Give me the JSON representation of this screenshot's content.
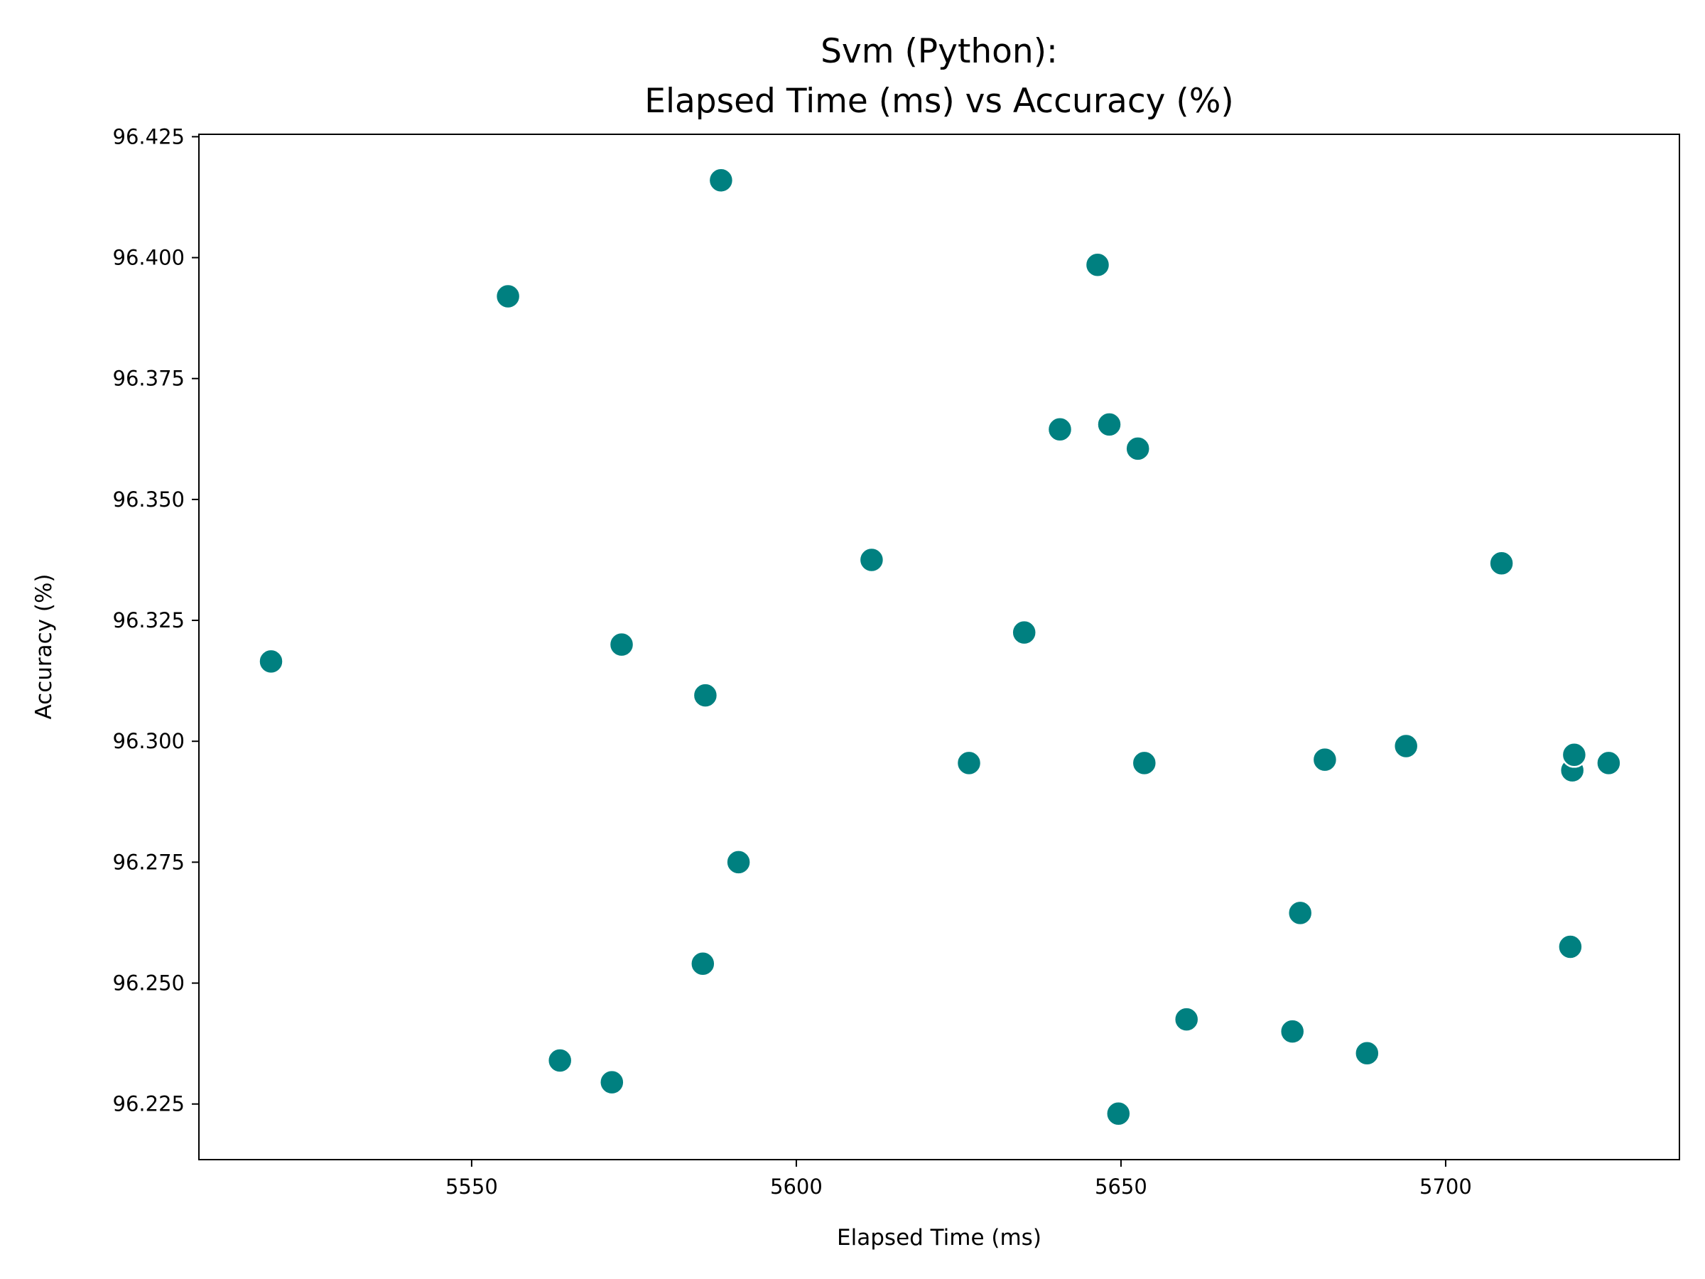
{
  "chart_data": {
    "type": "scatter",
    "title": [
      "Svm (Python):",
      "Elapsed Time (ms) vs Accuracy (%)"
    ],
    "xlabel": "Elapsed Time (ms)",
    "ylabel": "Accuracy (%)",
    "xlim": [
      5508,
      5736
    ],
    "ylim": [
      96.2135,
      96.4255
    ],
    "xticks": [
      5550,
      5600,
      5650,
      5700
    ],
    "xtick_labels": [
      "5550",
      "5600",
      "5650",
      "5700"
    ],
    "yticks": [
      96.225,
      96.25,
      96.275,
      96.3,
      96.325,
      96.35,
      96.375,
      96.4,
      96.425
    ],
    "ytick_labels": [
      "96.225",
      "96.250",
      "96.275",
      "96.300",
      "96.325",
      "96.350",
      "96.375",
      "96.400",
      "96.425"
    ],
    "grid": false,
    "marker_color": "#008080",
    "points": [
      {
        "x": 5519.1,
        "y": 96.3165
      },
      {
        "x": 5555.6,
        "y": 96.392
      },
      {
        "x": 5563.6,
        "y": 96.234
      },
      {
        "x": 5571.6,
        "y": 96.2295
      },
      {
        "x": 5573.1,
        "y": 96.32
      },
      {
        "x": 5585.6,
        "y": 96.254
      },
      {
        "x": 5586.0,
        "y": 96.3095
      },
      {
        "x": 5588.4,
        "y": 96.416
      },
      {
        "x": 5591.1,
        "y": 96.275
      },
      {
        "x": 5611.6,
        "y": 96.3375
      },
      {
        "x": 5626.6,
        "y": 96.2955
      },
      {
        "x": 5635.1,
        "y": 96.3225
      },
      {
        "x": 5640.6,
        "y": 96.3645
      },
      {
        "x": 5646.4,
        "y": 96.3985
      },
      {
        "x": 5648.2,
        "y": 96.3655
      },
      {
        "x": 5649.6,
        "y": 96.223
      },
      {
        "x": 5652.6,
        "y": 96.3605
      },
      {
        "x": 5653.6,
        "y": 96.2955
      },
      {
        "x": 5660.1,
        "y": 96.2425
      },
      {
        "x": 5676.4,
        "y": 96.24
      },
      {
        "x": 5677.6,
        "y": 96.2645
      },
      {
        "x": 5681.4,
        "y": 96.2962
      },
      {
        "x": 5687.9,
        "y": 96.2355
      },
      {
        "x": 5693.9,
        "y": 96.299
      },
      {
        "x": 5708.6,
        "y": 96.3368
      },
      {
        "x": 5719.2,
        "y": 96.2575
      },
      {
        "x": 5719.5,
        "y": 96.294
      },
      {
        "x": 5719.8,
        "y": 96.2972
      },
      {
        "x": 5725.1,
        "y": 96.2955
      }
    ]
  }
}
